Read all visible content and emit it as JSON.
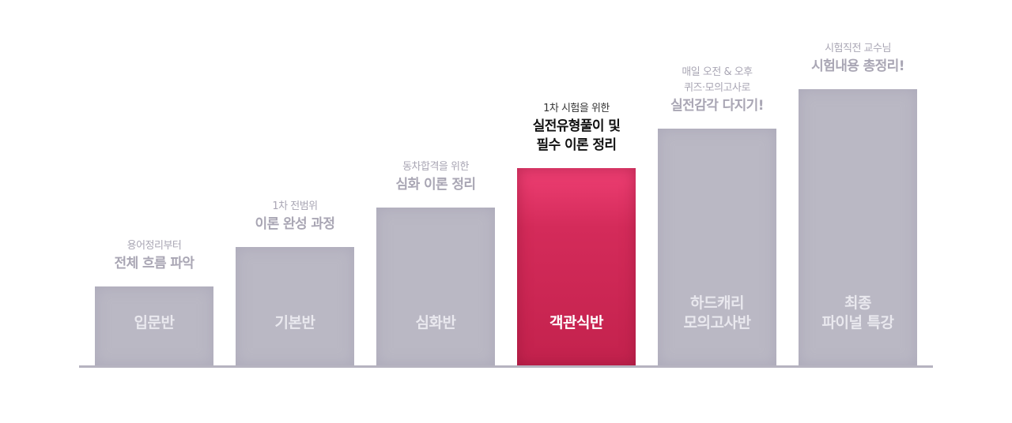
{
  "colors": {
    "bar": "#bab8c4",
    "active_bar": "#d42b5a",
    "caption_muted": "#a9a6b4",
    "caption_active": "#111111",
    "baseline": "#b6b3c0"
  },
  "steps": [
    {
      "label": "입문반",
      "caption_sub": "용어정리부터",
      "caption_main": "전체 흐름 파악",
      "active": false
    },
    {
      "label": "기본반",
      "caption_sub": "1차 전범위",
      "caption_main": "이론 완성 과정",
      "active": false
    },
    {
      "label": "심화반",
      "caption_sub": "동차합격을 위한",
      "caption_main": "심화 이론 정리",
      "active": false
    },
    {
      "label": "객관식반",
      "caption_sub": "1차 시험을 위한",
      "caption_main": "실전유형풀이 및\n필수 이론 정리",
      "active": true
    },
    {
      "label": "하드캐리\n모의고사반",
      "caption_sub": "매일 오전 & 오후\n퀴즈·모의고사로",
      "caption_main": "실전감각 다지기!",
      "active": false
    },
    {
      "label": "최종\n파이널 특강",
      "caption_sub": "시험직전 교수님",
      "caption_main": "시험내용 총정리!",
      "active": false
    }
  ]
}
